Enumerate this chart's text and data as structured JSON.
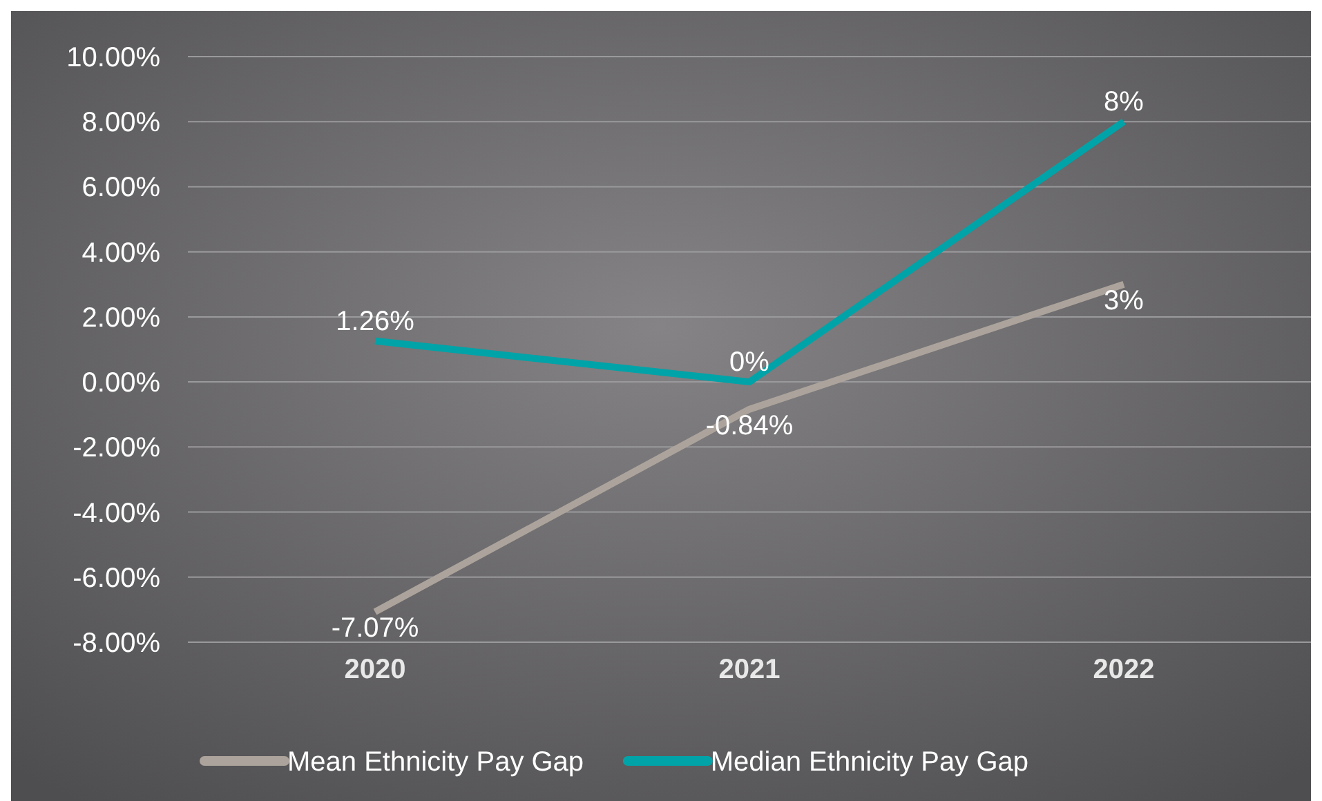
{
  "chart_data": {
    "type": "line",
    "categories": [
      "2020",
      "2021",
      "2022"
    ],
    "series": [
      {
        "name": "Mean Ethnicity Pay Gap",
        "color": "#aca49c",
        "values": [
          -7.07,
          -0.84,
          3
        ],
        "value_labels": [
          "-7.07%",
          "-0.84%",
          "3%"
        ]
      },
      {
        "name": "Median Ethnicity Pay Gap",
        "color": "#00a3a8",
        "values": [
          1.26,
          0,
          8
        ],
        "value_labels": [
          "1.26%",
          "0%",
          "8%"
        ]
      }
    ],
    "ylim": [
      -8,
      10
    ],
    "yticks": [
      {
        "value": -8,
        "label": "-8.00%"
      },
      {
        "value": -6,
        "label": "-6.00%"
      },
      {
        "value": -4,
        "label": "-4.00%"
      },
      {
        "value": -2,
        "label": "-2.00%"
      },
      {
        "value": 0,
        "label": "0.00%"
      },
      {
        "value": 2,
        "label": "2.00%"
      },
      {
        "value": 4,
        "label": "4.00%"
      },
      {
        "value": 6,
        "label": "6.00%"
      },
      {
        "value": 8,
        "label": "8.00%"
      },
      {
        "value": 10,
        "label": "10.00%"
      }
    ],
    "grid": "y",
    "legend": "bottom",
    "marker": "none",
    "line_style": "solid"
  }
}
